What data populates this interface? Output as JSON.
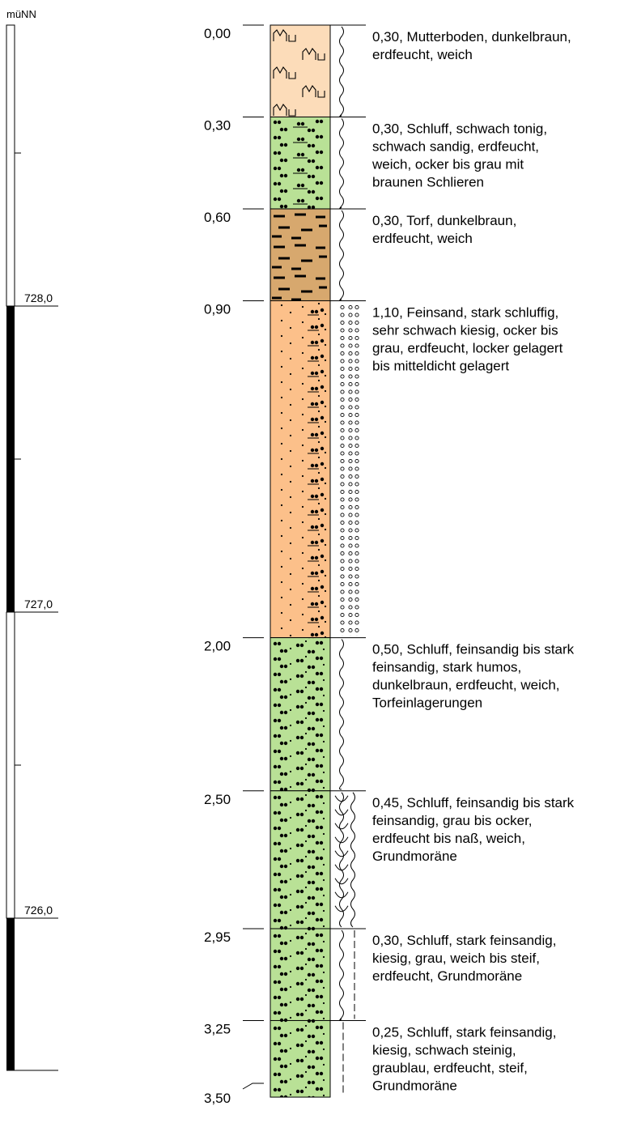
{
  "scale": {
    "unit": "müNN",
    "labels": [
      "728,0",
      "727,0",
      "726,0"
    ]
  },
  "profile": {
    "final_depth": "3,50",
    "layers": [
      {
        "top": "0,00",
        "top_m": 0.0,
        "bottom_m": 0.3,
        "pattern": "mutterboden",
        "fill": "#fcdcb9",
        "consistency": "weich",
        "description": [
          "0,30, Mutterboden, dunkelbraun,",
          "erdfeucht, weich"
        ]
      },
      {
        "top": "0,30",
        "top_m": 0.3,
        "bottom_m": 0.6,
        "pattern": "schluff",
        "fill": "#b9e196",
        "consistency": "weich",
        "description": [
          "0,30, Schluff, schwach tonig,",
          "schwach sandig, erdfeucht,",
          "weich, ocker bis grau mit",
          "braunen Schlieren"
        ]
      },
      {
        "top": "0,60",
        "top_m": 0.6,
        "bottom_m": 0.9,
        "pattern": "torf",
        "fill": "#d7a86e",
        "consistency": "weich",
        "description": [
          "0,30, Torf, dunkelbraun,",
          "erdfeucht, weich"
        ]
      },
      {
        "top": "0,90",
        "top_m": 0.9,
        "bottom_m": 2.0,
        "pattern": "feinsand",
        "fill": "#fcc08a",
        "consistency": "locker",
        "description": [
          "1,10, Feinsand, stark schluffig,",
          "sehr schwach kiesig, ocker bis",
          "grau, erdfeucht, locker gelagert",
          "bis mitteldicht gelagert"
        ]
      },
      {
        "top": "2,00",
        "top_m": 2.0,
        "bottom_m": 2.5,
        "pattern": "schluff_sand",
        "fill": "#b9e196",
        "consistency": "weich",
        "description": [
          "0,50, Schluff, feinsandig bis stark",
          "feinsandig, stark humos,",
          "dunkelbraun, erdfeucht, weich,",
          "Torfeinlagerungen"
        ]
      },
      {
        "top": "2,50",
        "top_m": 2.5,
        "bottom_m": 2.95,
        "pattern": "schluff_sand",
        "fill": "#b9e196",
        "consistency": "nass_weich",
        "description": [
          "0,45, Schluff, feinsandig bis stark",
          "feinsandig, grau bis ocker,",
          "erdfeucht bis naß, weich,",
          "Grundmoräne"
        ]
      },
      {
        "top": "2,95",
        "top_m": 2.95,
        "bottom_m": 3.25,
        "pattern": "schluff_sand",
        "fill": "#b9e196",
        "consistency": "weich_steif",
        "description": [
          "0,30, Schluff, stark feinsandig,",
          "kiesig, grau, weich bis steif,",
          "erdfeucht, Grundmoräne"
        ]
      },
      {
        "top": "3,25",
        "top_m": 3.25,
        "bottom_m": 3.5,
        "pattern": "schluff_sand",
        "fill": "#b9e196",
        "consistency": "steif",
        "description": [
          "0,25, Schluff, stark feinsandig,",
          "kiesig, schwach steinig,",
          "graublau, erdfeucht, steif,",
          "Grundmoräne"
        ]
      }
    ]
  }
}
